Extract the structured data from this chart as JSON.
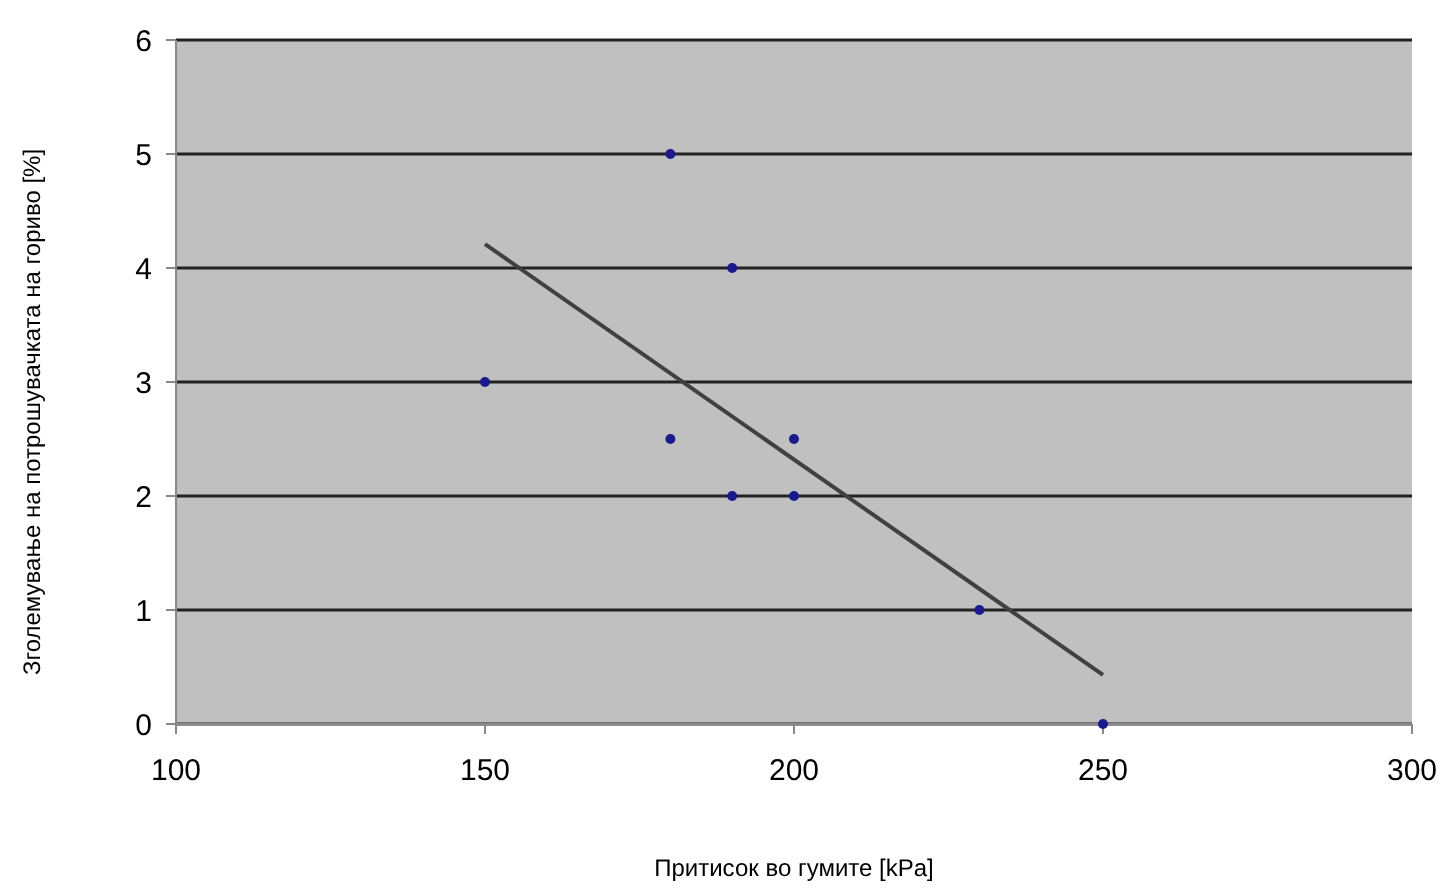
{
  "chart_data": {
    "type": "scatter",
    "xlabel": "Притисок во гумите [kPa]",
    "ylabel": "Зголемување на потрошувачката на гориво [%]",
    "xlim": [
      100,
      300
    ],
    "xticks": [
      100,
      150,
      200,
      250,
      300
    ],
    "ylim": [
      0,
      6
    ],
    "yticks": [
      0,
      1,
      2,
      3,
      4,
      5,
      6
    ],
    "grid": "y",
    "series": [
      {
        "color": "#1a1a8c",
        "marker": "circle",
        "x": [
          150,
          180,
          180,
          190,
          190,
          200,
          200,
          230,
          250
        ],
        "values": [
          3,
          5,
          2.5,
          4,
          2,
          2.5,
          2,
          1,
          0
        ]
      },
      {
        "type": "line",
        "marker": "none",
        "color": "#404040",
        "x": [
          150,
          250
        ],
        "values": [
          4.21,
          0.43
        ]
      }
    ]
  }
}
